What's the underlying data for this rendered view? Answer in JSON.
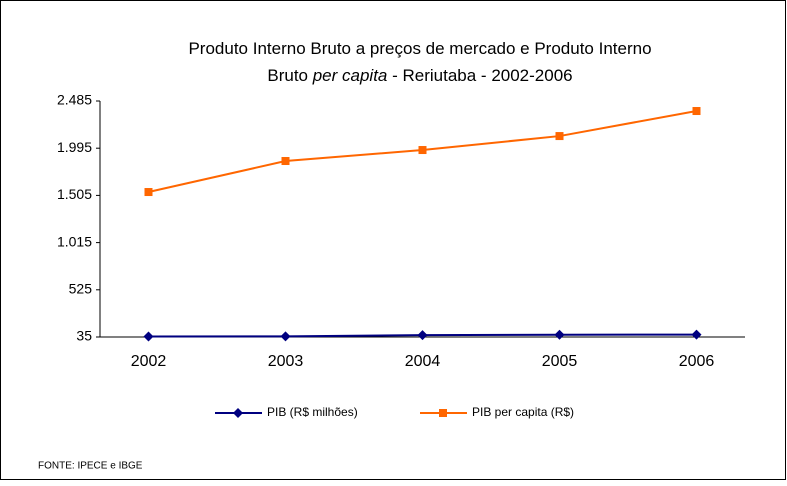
{
  "chart_data": {
    "type": "line",
    "title": [
      "Produto Interno Bruto a preços de mercado  e   Produto Interno",
      "Bruto ",
      "per capita",
      " - Reriutaba - 2002-2006"
    ],
    "categories": [
      "2002",
      "2003",
      "2004",
      "2005",
      "2006"
    ],
    "series": [
      {
        "name": "PIB (R$ milhões)",
        "color": "#000080",
        "marker": "diamond",
        "values": [
          40,
          42,
          55,
          58,
          60
        ]
      },
      {
        "name": "PIB per capita (R$)",
        "color": "#ff6600",
        "marker": "square",
        "values": [
          1540,
          1862,
          1976,
          2121,
          2381
        ]
      }
    ],
    "ylim": [
      35,
      2485
    ],
    "yticks": [
      35,
      525,
      {
        "value": 1015,
        "label": "1.015"
      },
      {
        "value": 1505,
        "label": "1.505"
      },
      {
        "value": 1995,
        "label": "1.995"
      },
      {
        "value": 2485,
        "label": "2.485"
      }
    ],
    "grid": false,
    "legend": "bottom",
    "source": "FONTE: IPECE e IBGE"
  }
}
